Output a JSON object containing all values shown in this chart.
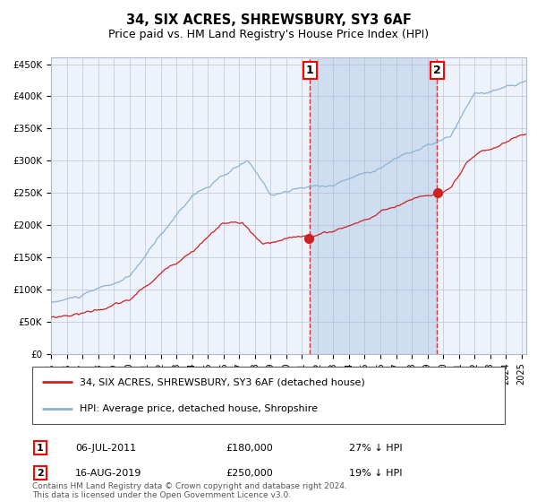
{
  "title": "34, SIX ACRES, SHREWSBURY, SY3 6AF",
  "subtitle": "Price paid vs. HM Land Registry's House Price Index (HPI)",
  "legend_line1": "34, SIX ACRES, SHREWSBURY, SY3 6AF (detached house)",
  "legend_line2": "HPI: Average price, detached house, Shropshire",
  "annotation1": {
    "label": "1",
    "date": "06-JUL-2011",
    "price": "£180,000",
    "note": "27% ↓ HPI",
    "x_year": 2011.5,
    "y_val": 180000
  },
  "annotation2": {
    "label": "2",
    "date": "16-AUG-2019",
    "price": "£250,000",
    "note": "19% ↓ HPI",
    "x_year": 2019.62,
    "y_val": 250000
  },
  "footer": "Contains HM Land Registry data © Crown copyright and database right 2024.\nThis data is licensed under the Open Government Licence v3.0.",
  "ylim": [
    0,
    460000
  ],
  "xlim_start": 1995.0,
  "xlim_end": 2025.3,
  "hpi_color": "#8ab4d4",
  "price_color": "#cc2222",
  "plot_bg": "#eef2fa",
  "grid_color": "#b0b8d0",
  "shade_color": "#c8d8ee"
}
